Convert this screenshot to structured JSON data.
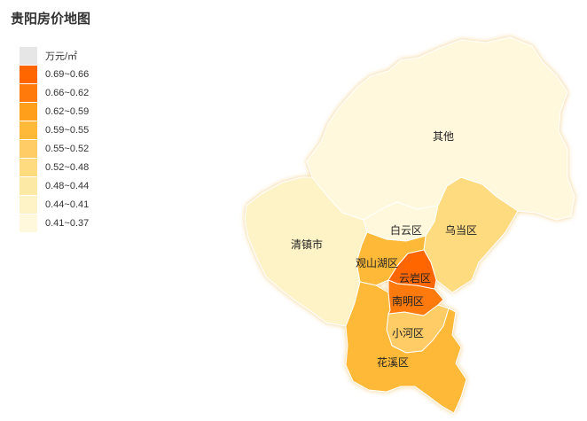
{
  "title": "贵阳房价地图",
  "legend": {
    "unit_label": "万元/㎡",
    "unit_color": "#e6e6e6",
    "items": [
      {
        "label": "0.69~0.66",
        "color": "#ff6600"
      },
      {
        "label": "0.66~0.62",
        "color": "#ff7a0a"
      },
      {
        "label": "0.62~0.59",
        "color": "#ff9f1a"
      },
      {
        "label": "0.59~0.55",
        "color": "#ffb938"
      },
      {
        "label": "0.55~0.52",
        "color": "#ffcc66"
      },
      {
        "label": "0.52~0.48",
        "color": "#ffdb80"
      },
      {
        "label": "0.48~0.44",
        "color": "#fde9a6"
      },
      {
        "label": "0.44~0.41",
        "color": "#fef3c7"
      },
      {
        "label": "0.41~0.37",
        "color": "#fff8dc"
      }
    ]
  },
  "regions": [
    {
      "name": "其他",
      "color": "#fff8dc"
    },
    {
      "name": "清镇市",
      "color": "#fef3c7"
    },
    {
      "name": "白云区",
      "color": "#fff8dc"
    },
    {
      "name": "乌当区",
      "color": "#ffdb80"
    },
    {
      "name": "观山湖区",
      "color": "#ffb938"
    },
    {
      "name": "云岩区",
      "color": "#ff6600"
    },
    {
      "name": "南明区",
      "color": "#ff7a0a"
    },
    {
      "name": "小河区",
      "color": "#ffcc66"
    },
    {
      "name": "花溪区",
      "color": "#ffb938"
    }
  ]
}
